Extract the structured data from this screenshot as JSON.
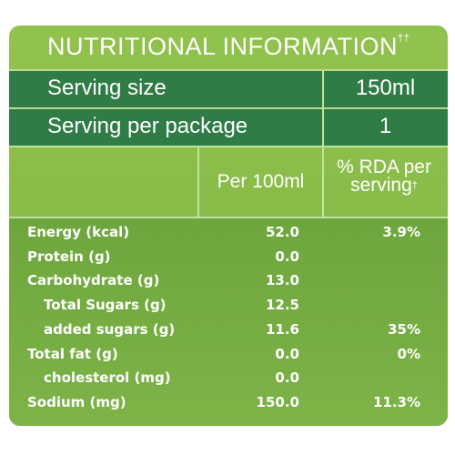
{
  "title": "NUTRITIONAL INFORMATION",
  "title_mark": "††",
  "serving": [
    {
      "label": "Serving size",
      "value": "150ml"
    },
    {
      "label": "Serving per package",
      "value": "1"
    }
  ],
  "columns": {
    "per": "Per 100ml",
    "rda": "% RDA per serving",
    "rda_mark": "†"
  },
  "rows": [
    {
      "name": "Energy (kcal)",
      "per": "52.0",
      "rda": "3.9%"
    },
    {
      "name": "Protein (g)",
      "per": "0.0"
    },
    {
      "name": "Carbohydrate (g)",
      "per": "13.0",
      "subrows": [
        {
          "name": "Total Sugars (g)",
          "per": "12.5"
        },
        {
          "name": "added sugars (g)",
          "per": "11.6",
          "rda": "35%"
        }
      ]
    },
    {
      "name": "Total fat (g)",
      "per": "0.0",
      "rda": "0%",
      "subrows": [
        {
          "name": "cholesterol (mg)",
          "per": "0.0"
        }
      ]
    },
    {
      "name": "Sodium (mg)",
      "per": "150.0",
      "rda": "11.3%"
    }
  ]
}
